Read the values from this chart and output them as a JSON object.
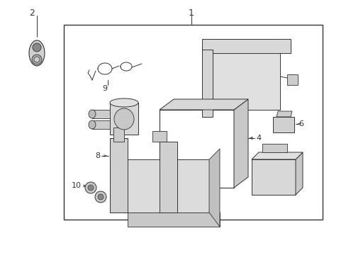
{
  "bg_color": "#ffffff",
  "fig_width": 4.89,
  "fig_height": 3.6,
  "dpi": 100,
  "line_color": "#333333",
  "gray_fill": "#cccccc",
  "light_fill": "#e8e8e8"
}
